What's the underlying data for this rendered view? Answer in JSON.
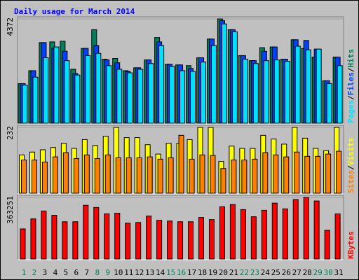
{
  "chart_data": {
    "type": "bar",
    "title": "Daily usage for March 2014",
    "categories": [
      "1",
      "2",
      "3",
      "4",
      "5",
      "6",
      "7",
      "8",
      "9",
      "10",
      "11",
      "12",
      "13",
      "14",
      "15",
      "16",
      "17",
      "18",
      "19",
      "20",
      "21",
      "22",
      "23",
      "24",
      "25",
      "26",
      "27",
      "28",
      "29",
      "30",
      "31"
    ],
    "category_colors": [
      "#00805c",
      "#00805c",
      "#000000",
      "#000000",
      "#000000",
      "#000000",
      "#000000",
      "#00805c",
      "#00805c",
      "#000000",
      "#000000",
      "#000000",
      "#000000",
      "#000000",
      "#00805c",
      "#00805c",
      "#000000",
      "#000000",
      "#000000",
      "#000000",
      "#000000",
      "#00805c",
      "#00805c",
      "#000000",
      "#000000",
      "#000000",
      "#000000",
      "#000000",
      "#00805c",
      "#00805c",
      "#000000"
    ],
    "legend_separator": "/",
    "panels": [
      {
        "ylim": [
          0,
          4372
        ],
        "yticks": [
          4372
        ],
        "series": [
          {
            "name": "Hits",
            "color": "#00805c",
            "values": [
              1658,
              2201,
              3377,
              3407,
              3437,
              2261,
              3136,
              3920,
              2683,
              2714,
              2201,
              2322,
              2653,
              3588,
              2472,
              2442,
              2412,
              2744,
              3528,
              4372,
              3920,
              2834,
              2623,
              3166,
              3196,
              2683,
              3497,
              3136,
              2774,
              1779,
              2774
            ]
          },
          {
            "name": "Files",
            "color": "#0040ff",
            "values": [
              1658,
              2201,
              3377,
              3136,
              3015,
              2080,
              3136,
              3256,
              2653,
              2533,
              2171,
              2322,
              2653,
              3407,
              2472,
              2442,
              2291,
              2744,
              3528,
              4300,
              3920,
              2834,
              2623,
              3015,
              3196,
              2683,
              3497,
              3467,
              3105,
              1779,
              2774
            ]
          },
          {
            "name": "Pages",
            "color": "#00e0ff",
            "values": [
              1598,
              1930,
              2744,
              3196,
              2623,
              2020,
              2834,
              2925,
              2412,
              2261,
              2111,
              2261,
              2502,
              3256,
              2382,
              2201,
              2171,
              2563,
              3256,
              4161,
              3829,
              2683,
              2502,
              2623,
              2653,
              2593,
              3226,
              3075,
              3105,
              1658,
              2412
            ]
          }
        ]
      },
      {
        "ylim": [
          0,
          232
        ],
        "yticks": [
          232
        ],
        "series": [
          {
            "name": "Visits",
            "color": "#ffff00",
            "values": [
              135,
              145,
              153,
              161,
              176,
              158,
              189,
              168,
              201,
              232,
              196,
              196,
              171,
              138,
              176,
              176,
              189,
              232,
              232,
              112,
              166,
              158,
              158,
              204,
              191,
              173,
              232,
              194,
              158,
              150,
              232
            ]
          },
          {
            "name": "Sites",
            "color": "#ff8000",
            "values": [
              117,
              117,
              110,
              128,
              143,
              122,
              135,
              122,
              135,
              125,
              125,
              125,
              128,
              120,
              125,
              204,
              120,
              135,
              133,
              87,
              117,
              117,
              120,
              143,
              135,
              128,
              145,
              130,
              130,
              138,
              148
            ]
          }
        ]
      },
      {
        "ylim": [
          0,
          363251
        ],
        "yticks": [
          363251
        ],
        "series": [
          {
            "name": "KBytes",
            "color": "#ff0000",
            "values": [
              177408,
              236544,
              283008,
              257664,
              219648,
              219648,
              316800,
              304128,
              266112,
              270336,
              211200,
              215424,
              253440,
              228096,
              223872,
              219648,
              219648,
              244992,
              232320,
              308352,
              321024,
              291456,
              249216,
              287232,
              329472,
              295680,
              350592,
              363251,
              342144,
              168960,
              266112
            ]
          }
        ]
      }
    ]
  }
}
